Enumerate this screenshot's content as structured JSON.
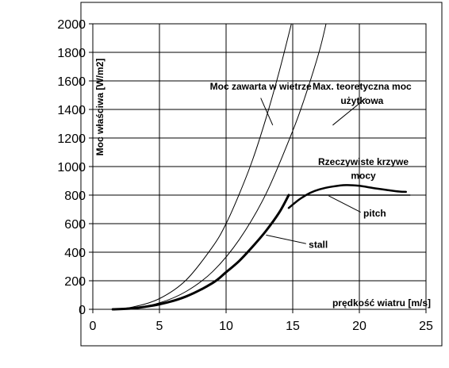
{
  "chart_data": {
    "type": "line",
    "title": "",
    "xlabel": "prędkość wiatru [m/s]",
    "ylabel": "Moc właściwa [W/m2]",
    "xlim": [
      0,
      25
    ],
    "ylim": [
      0,
      2000
    ],
    "xticks": [
      0,
      5,
      10,
      15,
      20,
      25
    ],
    "yticks": [
      0,
      200,
      400,
      600,
      800,
      1000,
      1200,
      1400,
      1600,
      1800,
      2000
    ],
    "grid": true,
    "legend": "none",
    "series": [
      {
        "name": "Moc zawarta w wietrze",
        "stroke_width": 1,
        "x": [
          1.5,
          3,
          5,
          7,
          9,
          10,
          11,
          12,
          13,
          14,
          14.9
        ],
        "y": [
          2,
          16,
          75,
          205,
          440,
          600,
          810,
          1050,
          1340,
          1670,
          2000
        ]
      },
      {
        "name": "Max. teoretyczna moc użytkowa",
        "stroke_width": 1,
        "x": [
          1.5,
          3,
          5,
          7,
          9,
          11,
          13,
          15,
          16,
          17,
          17.5
        ],
        "y": [
          1,
          10,
          45,
          125,
          265,
          490,
          810,
          1250,
          1510,
          1810,
          2000
        ]
      },
      {
        "name": "stall",
        "stroke_width": 3,
        "x": [
          1.5,
          3,
          5,
          7,
          9,
          10,
          11,
          12,
          13,
          14,
          14.7
        ],
        "y": [
          0,
          7,
          35,
          90,
          185,
          260,
          340,
          440,
          550,
          680,
          800
        ]
      },
      {
        "name": "pitch",
        "stroke_width": 1.5,
        "x": [
          14.8,
          16,
          18,
          20,
          23.8
        ],
        "y": [
          800,
          800,
          800,
          800,
          800
        ]
      },
      {
        "name": "Rzeczywiste krzywe mocy",
        "stroke_width": 2.5,
        "x": [
          14.7,
          15.5,
          16.3,
          17,
          18,
          19,
          20,
          21,
          22,
          23,
          23.5
        ],
        "y": [
          710,
          770,
          815,
          840,
          860,
          870,
          865,
          850,
          837,
          825,
          823
        ]
      }
    ],
    "annotations": [
      {
        "text": "Moc zawarta w wietrze",
        "x": 12.6,
        "y": 1540,
        "anchor": "middle"
      },
      {
        "text": "Max. teoretyczna moc",
        "x": 20.2,
        "y": 1540,
        "anchor": "middle"
      },
      {
        "text": "użytkowa",
        "x": 20.2,
        "y": 1440,
        "anchor": "middle"
      },
      {
        "text": "Rzeczywiste krzywe",
        "x": 20.3,
        "y": 1010,
        "anchor": "middle"
      },
      {
        "text": "mocy",
        "x": 20.3,
        "y": 915,
        "anchor": "middle"
      },
      {
        "text": "pitch",
        "x": 20.3,
        "y": 650,
        "anchor": "start"
      },
      {
        "text": "stall",
        "x": 16.2,
        "y": 430,
        "anchor": "start"
      }
    ],
    "pointers": [
      {
        "from": [
          12.6,
          1480
        ],
        "to": [
          13.5,
          1290
        ]
      },
      {
        "from": [
          20.5,
          1480
        ],
        "to": [
          18.0,
          1290
        ]
      },
      {
        "from": [
          20.1,
          680
        ],
        "to": [
          17.7,
          795
        ]
      },
      {
        "from": [
          16.0,
          460
        ],
        "to": [
          13.0,
          520
        ]
      }
    ]
  }
}
